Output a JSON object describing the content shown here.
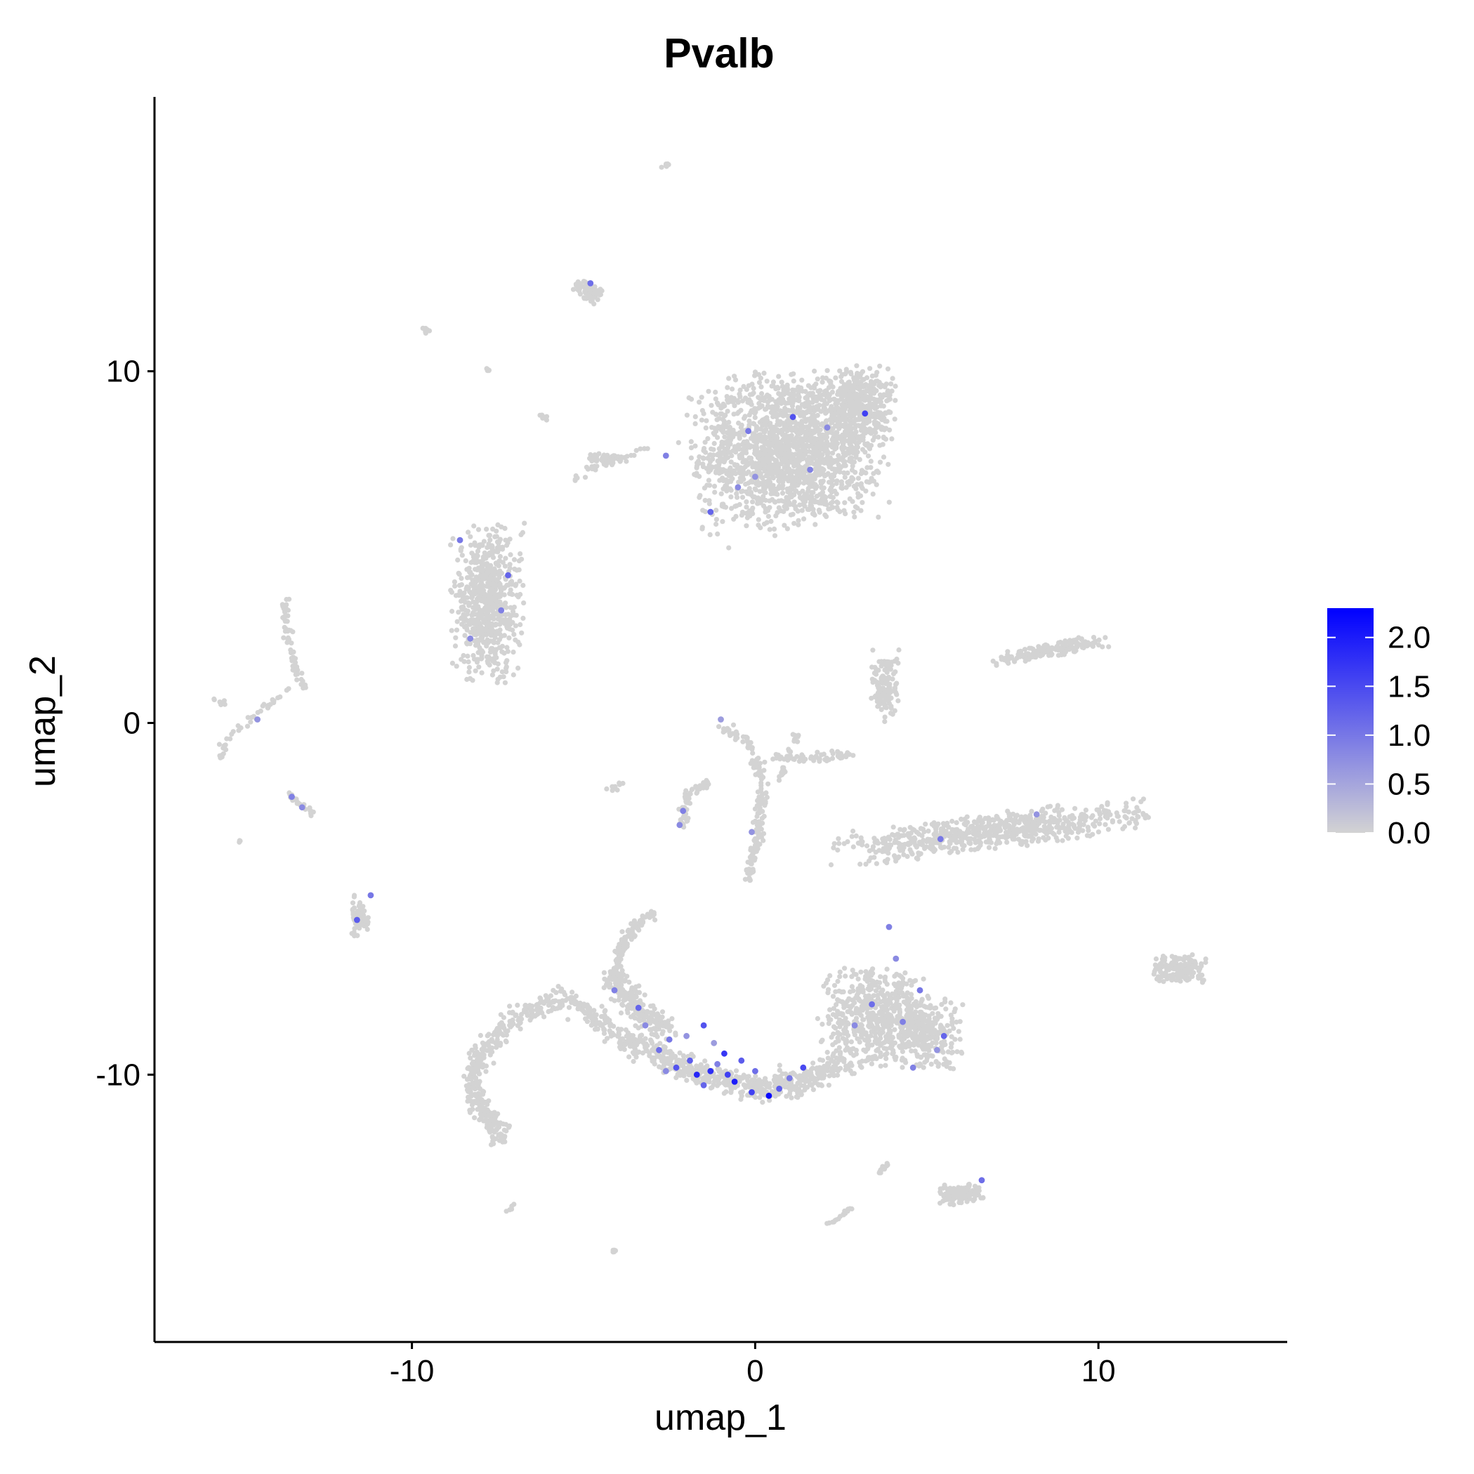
{
  "chart_data": {
    "type": "scatter",
    "title": "Pvalb",
    "xlabel": "umap_1",
    "ylabel": "umap_2",
    "xlim": [
      -17.5,
      15.5
    ],
    "ylim": [
      -17.6,
      17.8
    ],
    "x_ticks": [
      -10,
      0,
      10
    ],
    "y_ticks": [
      -10,
      0,
      10
    ],
    "x_tick_labels": [
      "-10",
      "0",
      "10"
    ],
    "y_tick_labels": [
      "-10",
      "0",
      "10"
    ],
    "grid": false,
    "legend": {
      "type": "colorbar",
      "placement": "right",
      "min": 0,
      "max": 2.3,
      "ticks": [
        0.0,
        0.5,
        1.0,
        1.5,
        2.0
      ],
      "tick_labels": [
        "0.0",
        "0.5",
        "1.0",
        "1.5",
        "2.0"
      ],
      "low_color": "#d3d3d3",
      "high_color": "#0000ff"
    },
    "colors": {
      "zero": "#d3d3d3",
      "high": "#0000ff"
    },
    "clusters": [
      {
        "center": [
          1.0,
          7.8
        ],
        "spread": [
          2.4,
          1.9
        ],
        "n": 1800,
        "angle": 0.1
      },
      {
        "center": [
          3.1,
          9.0
        ],
        "spread": [
          0.9,
          1.0
        ],
        "n": 350,
        "angle": 0.0
      },
      {
        "center": [
          -7.8,
          3.4
        ],
        "spread": [
          0.9,
          1.9
        ],
        "n": 650,
        "angle": 0.0
      },
      {
        "center": [
          3.5,
          -8.4
        ],
        "spread": [
          1.4,
          1.2
        ],
        "n": 550,
        "angle": 0.0
      },
      {
        "center": [
          5.0,
          -8.8
        ],
        "spread": [
          0.9,
          0.9
        ],
        "n": 250,
        "angle": 0.0
      },
      {
        "center": [
          6.9,
          -3.1
        ],
        "spread": [
          4.0,
          0.45
        ],
        "n": 650,
        "angle": 0.12
      },
      {
        "center": [
          8.7,
          2.1
        ],
        "spread": [
          1.6,
          0.18
        ],
        "n": 160,
        "angle": 0.17
      },
      {
        "center": [
          12.3,
          -7.0
        ],
        "spread": [
          0.7,
          0.35
        ],
        "n": 160,
        "angle": 0.0
      },
      {
        "center": [
          6.0,
          -13.4
        ],
        "spread": [
          0.55,
          0.25
        ],
        "n": 130,
        "angle": 0.0
      },
      {
        "center": [
          -4.9,
          12.3
        ],
        "spread": [
          0.35,
          0.25
        ],
        "n": 70,
        "angle": -0.5
      },
      {
        "center": [
          -11.5,
          -5.5
        ],
        "spread": [
          0.22,
          0.5
        ],
        "n": 70,
        "angle": 0.0
      },
      {
        "center": [
          3.8,
          1.0
        ],
        "spread": [
          0.35,
          0.9
        ],
        "n": 130,
        "angle": 0.0
      },
      {
        "center": [
          -4.3,
          7.5
        ],
        "spread": [
          0.5,
          0.15
        ],
        "n": 50,
        "angle": 0.0
      }
    ],
    "paths": [
      {
        "points": [
          [
            -8.2,
            -10.6
          ],
          [
            -8.2,
            -9.8
          ],
          [
            -7.3,
            -8.6
          ],
          [
            -6.0,
            -7.9
          ],
          [
            -5.2,
            -7.9
          ],
          [
            -4.5,
            -8.6
          ],
          [
            -3.5,
            -9.3
          ]
        ],
        "spread": 0.3,
        "n": 380
      },
      {
        "points": [
          [
            -8.2,
            -10.6
          ],
          [
            -7.6,
            -11.4
          ],
          [
            -7.4,
            -11.9
          ]
        ],
        "spread": 0.3,
        "n": 130
      },
      {
        "points": [
          [
            -3.4,
            -9.1
          ],
          [
            -1.5,
            -10.0
          ],
          [
            0.2,
            -10.4
          ],
          [
            1.5,
            -10.2
          ],
          [
            2.6,
            -9.6
          ]
        ],
        "spread": 0.35,
        "n": 520
      },
      {
        "points": [
          [
            -4.1,
            -7.2
          ],
          [
            -3.8,
            -6.2
          ],
          [
            -3.2,
            -5.5
          ],
          [
            -3.0,
            -5.4
          ]
        ],
        "spread": 0.15,
        "n": 110
      },
      {
        "points": [
          [
            -4.1,
            -7.2
          ],
          [
            -3.4,
            -8.2
          ],
          [
            -2.6,
            -8.7
          ]
        ],
        "spread": 0.35,
        "n": 200
      },
      {
        "points": [
          [
            -1.0,
            0.0
          ],
          [
            -0.2,
            -0.6
          ],
          [
            0.2,
            -1.6
          ],
          [
            0.1,
            -3.2
          ],
          [
            -0.2,
            -4.5
          ]
        ],
        "spread": 0.15,
        "n": 170
      },
      {
        "points": [
          [
            0.5,
            -1.0
          ],
          [
            2.0,
            -1.0
          ],
          [
            2.8,
            -0.9
          ]
        ],
        "spread": 0.12,
        "n": 60
      },
      {
        "points": [
          [
            -2.1,
            -3.0
          ],
          [
            -2.0,
            -2.0
          ],
          [
            -1.3,
            -1.7
          ]
        ],
        "spread": 0.12,
        "n": 60
      },
      {
        "points": [
          [
            -13.7,
            3.4
          ],
          [
            -13.6,
            2.3
          ],
          [
            -13.3,
            1.3
          ],
          [
            -13.1,
            1.0
          ]
        ],
        "spread": 0.12,
        "n": 60
      },
      {
        "points": [
          [
            -13.5,
            1.0
          ],
          [
            -14.5,
            0.3
          ],
          [
            -15.4,
            -0.5
          ],
          [
            -15.6,
            -1.0
          ]
        ],
        "spread": 0.1,
        "n": 40
      },
      {
        "points": [
          [
            -13.6,
            -2.0
          ],
          [
            -12.9,
            -2.6
          ]
        ],
        "spread": 0.07,
        "n": 30
      },
      {
        "points": [
          [
            0.7,
            -1.6
          ],
          [
            1.3,
            -0.2
          ]
        ],
        "spread": 0.1,
        "n": 25
      },
      {
        "points": [
          [
            -5.2,
            7.1
          ],
          [
            -3.2,
            7.8
          ]
        ],
        "spread": 0.08,
        "n": 25
      },
      {
        "points": [
          [
            -15.8,
            0.7
          ],
          [
            -15.4,
            0.5
          ]
        ],
        "spread": 0.05,
        "n": 8
      },
      {
        "points": [
          [
            -9.7,
            11.3
          ],
          [
            -9.5,
            11.1
          ]
        ],
        "spread": 0.05,
        "n": 10
      },
      {
        "points": [
          [
            -6.3,
            8.8
          ],
          [
            -6.0,
            8.6
          ]
        ],
        "spread": 0.05,
        "n": 10
      },
      {
        "points": [
          [
            -2.8,
            15.8
          ],
          [
            -2.5,
            15.9
          ]
        ],
        "spread": 0.05,
        "n": 10
      },
      {
        "points": [
          [
            -7.9,
            10.1
          ],
          [
            -7.7,
            10.0
          ]
        ],
        "spread": 0.05,
        "n": 5
      },
      {
        "points": [
          [
            3.5,
            -12.9
          ],
          [
            3.9,
            -12.5
          ]
        ],
        "spread": 0.06,
        "n": 16
      },
      {
        "points": [
          [
            2.1,
            -14.3
          ],
          [
            2.8,
            -13.8
          ]
        ],
        "spread": 0.06,
        "n": 16
      },
      {
        "points": [
          [
            -7.2,
            -13.9
          ],
          [
            -7.0,
            -13.7
          ]
        ],
        "spread": 0.05,
        "n": 6
      },
      {
        "points": [
          [
            -4.2,
            -15.1
          ],
          [
            -4.0,
            -14.9
          ]
        ],
        "spread": 0.05,
        "n": 6
      },
      {
        "points": [
          [
            -15.0,
            -3.4
          ],
          [
            -15.0,
            -3.3
          ]
        ],
        "spread": 0.05,
        "n": 3
      },
      {
        "points": [
          [
            -4.3,
            -1.9
          ],
          [
            -3.9,
            -1.7
          ]
        ],
        "spread": 0.08,
        "n": 10
      },
      {
        "points": [
          [
            -4.9,
            7.0
          ],
          [
            -5.3,
            6.9
          ]
        ],
        "spread": 0.05,
        "n": 4
      }
    ],
    "expressing_points": [
      [
        -1.9,
        -9.6,
        1.3
      ],
      [
        -1.3,
        -9.9,
        1.8
      ],
      [
        -0.6,
        -10.2,
        2.0
      ],
      [
        -0.1,
        -10.5,
        1.6
      ],
      [
        0.4,
        -10.6,
        2.2
      ],
      [
        1.4,
        -9.8,
        1.5
      ],
      [
        -0.9,
        -9.4,
        1.7
      ],
      [
        -1.5,
        -10.3,
        1.2
      ],
      [
        -2.5,
        -9.0,
        1.0
      ],
      [
        -3.2,
        -8.6,
        0.8
      ],
      [
        -2.3,
        -9.8,
        1.4
      ],
      [
        0.0,
        -9.9,
        1.1
      ],
      [
        -1.1,
        -9.7,
        0.9
      ],
      [
        -1.7,
        -10.0,
        1.9
      ],
      [
        -0.4,
        -9.6,
        1.3
      ],
      [
        -2.8,
        -9.3,
        1.1
      ],
      [
        -3.4,
        -8.1,
        1.2
      ],
      [
        -4.1,
        -7.6,
        0.9
      ],
      [
        -1.5,
        -8.6,
        1.4
      ],
      [
        1.0,
        -10.1,
        1.0
      ],
      [
        -2.0,
        -8.9,
        0.7
      ],
      [
        -0.8,
        -10.0,
        1.6
      ],
      [
        0.7,
        -10.4,
        1.3
      ],
      [
        -1.2,
        -9.1,
        0.6
      ],
      [
        -2.6,
        -9.9,
        0.8
      ],
      [
        3.4,
        -8.0,
        1.1
      ],
      [
        4.3,
        -8.5,
        0.9
      ],
      [
        5.5,
        -8.9,
        1.2
      ],
      [
        4.1,
        -6.7,
        0.8
      ],
      [
        3.9,
        -5.8,
        0.9
      ],
      [
        4.8,
        -7.6,
        1.0
      ],
      [
        5.3,
        -9.3,
        0.7
      ],
      [
        2.9,
        -8.6,
        0.8
      ],
      [
        4.6,
        -9.8,
        0.9
      ],
      [
        3.2,
        8.8,
        1.6
      ],
      [
        1.1,
        8.7,
        1.4
      ],
      [
        -1.3,
        6.0,
        1.2
      ],
      [
        -0.2,
        8.3,
        1.0
      ],
      [
        1.6,
        7.2,
        0.9
      ],
      [
        -0.5,
        6.7,
        0.8
      ],
      [
        -8.6,
        5.2,
        1.0
      ],
      [
        -7.2,
        4.2,
        1.2
      ],
      [
        -8.3,
        2.4,
        0.8
      ],
      [
        -7.4,
        3.2,
        0.9
      ],
      [
        -11.6,
        -5.6,
        1.3
      ],
      [
        -11.2,
        -4.9,
        1.0
      ],
      [
        -13.5,
        -2.1,
        0.9
      ],
      [
        -13.2,
        -2.4,
        0.8
      ],
      [
        -14.5,
        0.1,
        0.7
      ],
      [
        -2.2,
        -2.9,
        0.8
      ],
      [
        -2.1,
        -2.5,
        0.9
      ],
      [
        -0.1,
        -3.1,
        0.7
      ],
      [
        -4.8,
        12.5,
        1.1
      ],
      [
        -2.6,
        7.6,
        0.9
      ],
      [
        -1.0,
        0.1,
        0.6
      ],
      [
        8.2,
        -2.6,
        0.7
      ],
      [
        5.4,
        -3.3,
        1.0
      ],
      [
        6.6,
        -13.0,
        1.1
      ],
      [
        2.1,
        8.4,
        0.8
      ],
      [
        0.0,
        7.0,
        0.7
      ]
    ]
  }
}
